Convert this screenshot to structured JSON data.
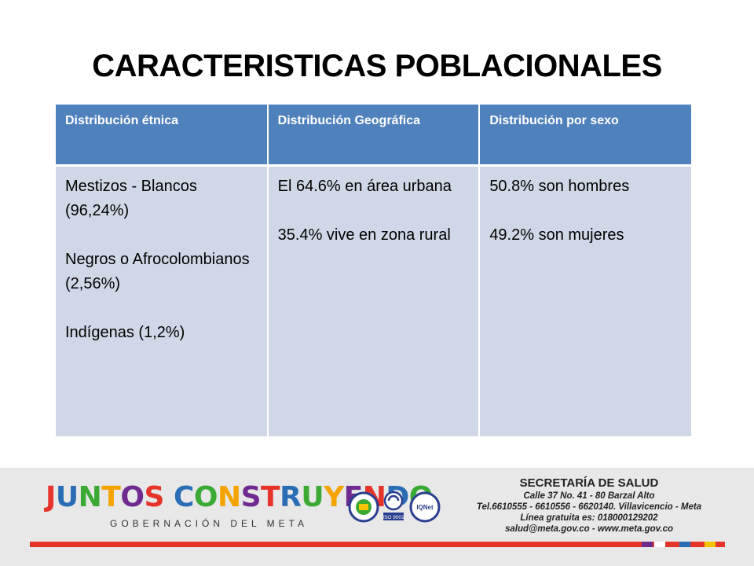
{
  "title": "CARACTERISTICAS POBLACIONALES",
  "table": {
    "headers": [
      "Distribución étnica",
      "Distribución Geográfica",
      "Distribución  por sexo"
    ],
    "columns": [
      [
        "Mestizos - Blancos (96,24%)",
        "Negros o Afrocolombianos (2,56%)",
        "Indígenas (1,2%)"
      ],
      [
        "El 64.6% en área urbana",
        "35.4% vive en zona rural"
      ],
      [
        "50.8% son hombres",
        "49.2% son mujeres"
      ]
    ]
  },
  "footer": {
    "logo_text": "JUNTOS CONSTRUYENDO",
    "logo_subtitle": "GOBERNACIÓN DEL META",
    "seal_texts": [
      "ISO 9001",
      "IQNet"
    ],
    "contact": {
      "title": "SECRETARÍA DE SALUD",
      "lines": [
        "Calle 37 No. 41 - 80 Barzal Alto",
        "Tel.6610555 - 6610556 - 6620140. Villavicencio - Meta",
        "Línea gratuita es: 018000129202",
        "salud@meta.gov.co - www.meta.gov.co"
      ]
    },
    "colors": {
      "bar": "#e6342b",
      "squares": [
        "#6f2b8f",
        "#ffffff",
        "#e6342b",
        "#2a6db5",
        "#e6342b",
        "#f5c400"
      ],
      "logo_letters": [
        "#e6342b",
        "#2a6db5",
        "#3aaa35",
        "#f5a300",
        "#6f2b8f"
      ]
    }
  }
}
